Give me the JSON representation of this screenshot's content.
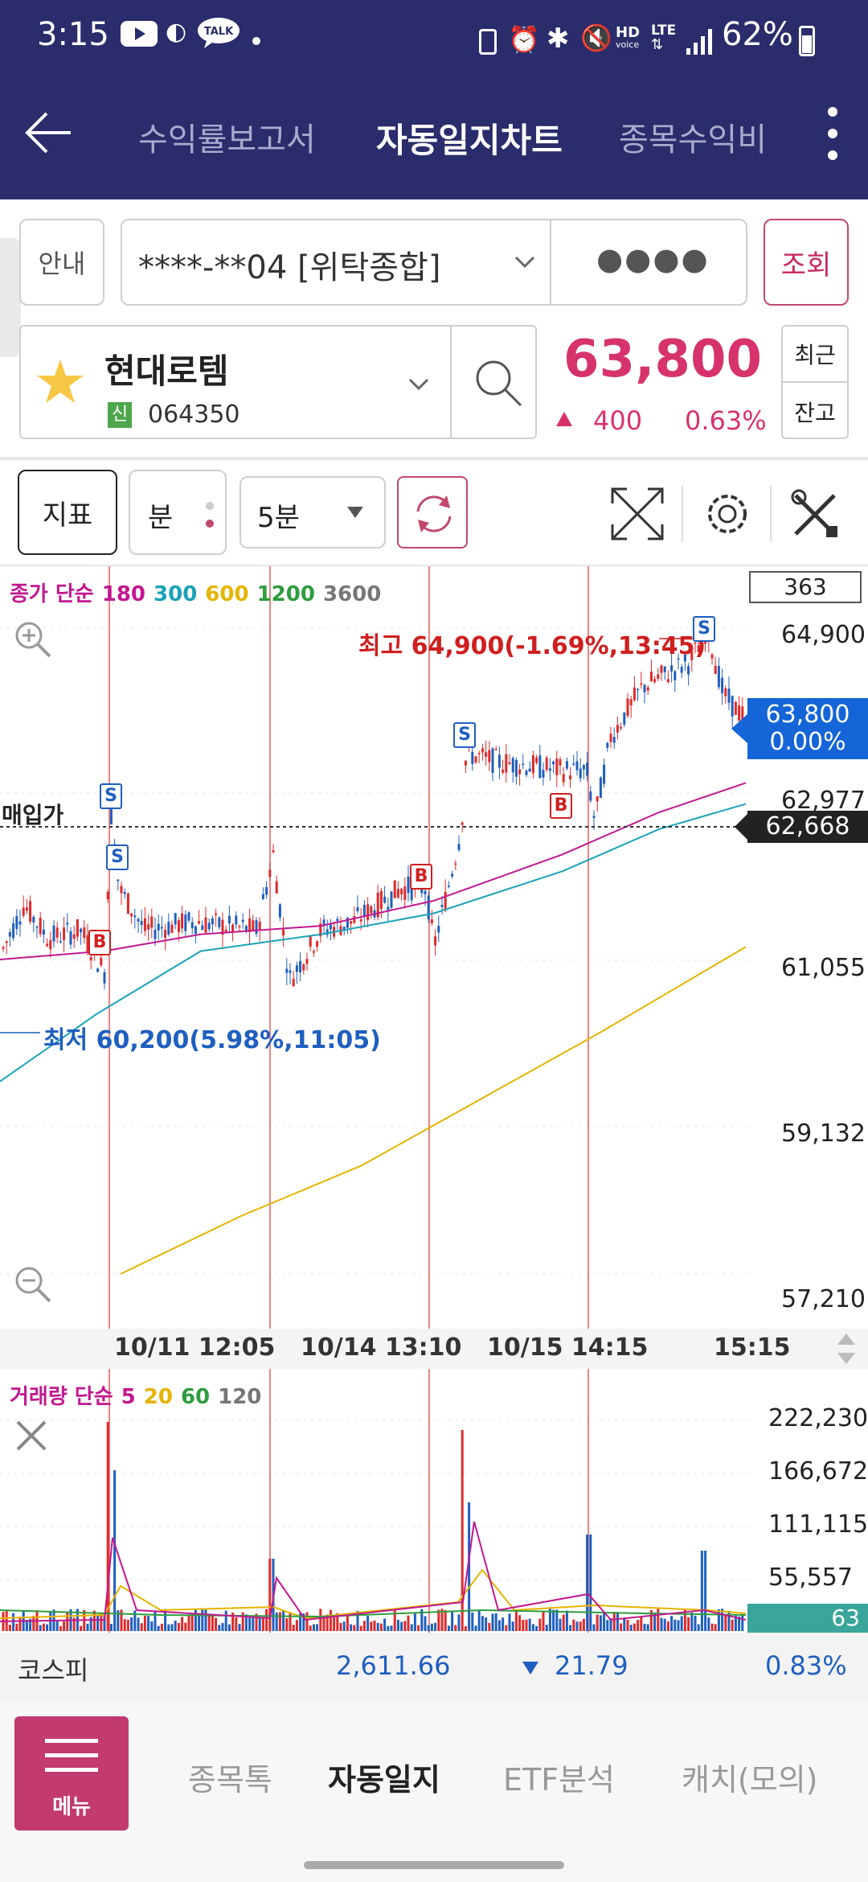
{
  "status_bar": {
    "time": "3:15",
    "battery": "62%",
    "hd": "HD",
    "voice": "voice",
    "lte": "LTE"
  },
  "header": {
    "tabs": [
      {
        "label": "수익률보고서",
        "active": false
      },
      {
        "label": "자동일지차트",
        "active": true
      },
      {
        "label": "종목수익비"
      }
    ]
  },
  "account": {
    "guide_label": "안내",
    "account_number": "****-**04 [위탁종합]",
    "password_mask": "●●●●",
    "query_label": "조회"
  },
  "stock": {
    "name": "현대로템",
    "credit_badge": "신",
    "code": "064350",
    "price": "63,800",
    "change": "400",
    "change_pct": "0.63%",
    "recent_label": "최근",
    "balance_label": "잔고"
  },
  "toolbar": {
    "indicator_label": "지표",
    "unit_label": "분",
    "interval_value": "5분"
  },
  "main_chart": {
    "ma_legend": [
      {
        "label": "종가 단순",
        "color": "#c2188f"
      },
      {
        "label": "180",
        "color": "#c2188f"
      },
      {
        "label": "300",
        "color": "#1aa3b8"
      },
      {
        "label": "600",
        "color": "#e5b400"
      },
      {
        "label": "1200",
        "color": "#2e9d3f"
      },
      {
        "label": "3600",
        "color": "#777777"
      }
    ],
    "count_box": "363",
    "y_ticks": [
      "64,900",
      "62,977",
      "61,055",
      "59,132",
      "57,210"
    ],
    "current_price": "63,800",
    "current_pct": "0.00%",
    "avg_price_label": "매입가",
    "avg_price": "62,668",
    "high_annotation": "최고 64,900(-1.69%,13:45)",
    "low_annotation": "최저 60,200(5.98%,11:05)",
    "x_ticks": [
      "10/11 12:05",
      "10/14 13:10",
      "10/15 14:15",
      "15:15"
    ],
    "sell_marker": "S",
    "buy_marker": "B"
  },
  "volume_chart": {
    "legend": [
      {
        "label": "거래량 단순",
        "color": "#c2188f"
      },
      {
        "label": "5",
        "color": "#c2188f"
      },
      {
        "label": "20",
        "color": "#e5b400"
      },
      {
        "label": "60",
        "color": "#2e9d3f"
      },
      {
        "label": "120",
        "color": "#777777"
      }
    ],
    "y_ticks": [
      "222,230",
      "166,672",
      "111,115",
      "55,557"
    ],
    "current_volume": "63"
  },
  "index_bar": {
    "name": "코스피",
    "value": "2,611.66",
    "change": "21.79",
    "change_pct": "0.83%"
  },
  "bottom_nav": {
    "menu_label": "메뉴",
    "items": [
      {
        "label": "종목톡",
        "active": false
      },
      {
        "label": "자동일지",
        "active": true
      },
      {
        "label": "ETF분석",
        "active": false
      },
      {
        "label": "캐치(모의)",
        "active": false
      }
    ]
  },
  "colors": {
    "header_bg": "#2a2c6b",
    "up": "#d6336c",
    "down": "#1f5fbf",
    "price_box": "#1565d8",
    "volume_box": "#3aa59a"
  }
}
